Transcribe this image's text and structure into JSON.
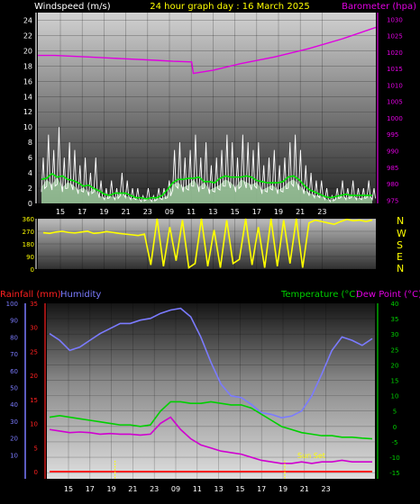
{
  "header": {
    "windspeed_label": "Windspeed (m/s)",
    "title": "24 hour graph day : 16 March 2025",
    "barometer_label": "Barometer (hpa)"
  },
  "colors": {
    "background": "#000000",
    "wind": "#ffffff",
    "wind_avg": "#00e600",
    "wind_gust_fill": "#b8f0b8",
    "barometer": "#e000e0",
    "direction": "#ffff00",
    "humidity": "#7b7bff",
    "rainfall": "#ff2020",
    "temperature": "#00d000",
    "dewpoint": "#d000d0",
    "title": "#ffff00"
  },
  "bottom_labels": {
    "rainfall": "Rainfall (mm)",
    "humidity": "Humidity",
    "temperature": "Temperature (°C)",
    "dewpoint": "Dew Point (°C)",
    "sunset": "Sun Set"
  },
  "compass": [
    "N",
    "W",
    "S",
    "E",
    "N"
  ],
  "chart_data": [
    {
      "type": "line",
      "name": "wind-barometer",
      "x_ticks": [
        "15",
        "17",
        "19",
        "21",
        "23",
        "09",
        "11",
        "13",
        "15",
        "17",
        "19",
        "21",
        "23"
      ],
      "left_axis": {
        "label": "Windspeed (m/s)",
        "ticks": [
          0,
          2,
          4,
          6,
          8,
          10,
          12,
          14,
          16,
          18,
          20,
          22,
          24
        ],
        "ylim": [
          0,
          25
        ]
      },
      "right_axis": {
        "label": "Barometer (hpa)",
        "ticks": [
          975,
          980,
          985,
          990,
          995,
          1000,
          1005,
          1010,
          1015,
          1020,
          1025,
          1030
        ],
        "ylim": [
          974,
          1032
        ]
      },
      "series": [
        {
          "name": "Windspeed (m/s)",
          "axis": "left",
          "color": "#ffffff",
          "values": [
            6,
            9,
            7,
            10,
            6,
            8,
            7,
            5,
            6,
            4,
            6,
            3,
            2,
            3,
            2,
            4,
            3,
            2,
            2,
            1,
            2,
            1,
            2,
            2,
            3,
            7,
            8,
            6,
            7,
            9,
            6,
            8,
            5,
            6,
            7,
            9,
            8,
            6,
            9,
            8,
            7,
            8,
            5,
            6,
            7,
            5,
            6,
            8,
            9,
            7,
            5,
            4,
            3,
            3,
            2,
            1,
            2,
            3,
            2,
            3,
            2,
            2,
            3,
            2
          ]
        },
        {
          "name": "Barometer (hpa)",
          "axis": "right",
          "color": "#e000e0",
          "x": [
            0,
            0.05,
            0.15,
            0.25,
            0.35,
            0.4,
            0.455,
            0.46,
            0.52,
            0.6,
            0.7,
            0.8,
            0.9,
            1.0
          ],
          "values": [
            1019,
            1019,
            1018.5,
            1018,
            1017.5,
            1017.2,
            1017,
            1013.5,
            1014.5,
            1016.5,
            1018.5,
            1021,
            1024,
            1027.5
          ]
        }
      ]
    },
    {
      "type": "line",
      "name": "wind-direction",
      "y_ticks": [
        0,
        90,
        180,
        270,
        360
      ],
      "ylim": [
        0,
        360
      ],
      "series": [
        {
          "name": "Wind direction",
          "color": "#ffff00",
          "values": [
            260,
            255,
            265,
            270,
            262,
            258,
            265,
            270,
            255,
            260,
            268,
            262,
            255,
            250,
            245,
            240,
            250,
            30,
            360,
            20,
            300,
            60,
            350,
            10,
            40,
            360,
            20,
            280,
            10,
            350,
            40,
            70,
            360,
            30,
            300,
            10,
            360,
            20,
            350,
            40,
            360,
            10,
            330,
            350,
            340,
            330,
            320,
            340,
            355,
            345,
            350,
            340,
            350
          ]
        }
      ]
    },
    {
      "type": "line",
      "name": "rain-humidity-temperature",
      "x_ticks": [
        "15",
        "17",
        "19",
        "21",
        "23",
        "09",
        "11",
        "13",
        "15",
        "17",
        "19",
        "21",
        "23"
      ],
      "left_axis_humidity": {
        "ticks": [
          10,
          20,
          30,
          40,
          50,
          60,
          70,
          80,
          90,
          100
        ],
        "ylim": [
          0,
          100
        ]
      },
      "left_axis_rain": {
        "ticks": [
          0,
          5,
          10,
          15,
          20,
          25,
          30,
          35
        ],
        "ylim": [
          0,
          35
        ]
      },
      "right_axis": {
        "ticks": [
          -15,
          -10,
          -5,
          0,
          5,
          10,
          15,
          20,
          25,
          30,
          35,
          40
        ],
        "ylim": [
          -17,
          40
        ]
      },
      "series": [
        {
          "name": "Humidity",
          "axis": "humidity",
          "color": "#7b7bff",
          "values": [
            82,
            78,
            72,
            74,
            78,
            82,
            85,
            88,
            88,
            90,
            91,
            94,
            96,
            97,
            92,
            80,
            65,
            52,
            45,
            44,
            40,
            35,
            34,
            32,
            33,
            36,
            45,
            58,
            72,
            80,
            78,
            75,
            79
          ]
        },
        {
          "name": "Temperature (°C)",
          "axis": "temp",
          "color": "#00d000",
          "values": [
            3,
            3.5,
            3,
            2.5,
            2,
            1.5,
            1,
            0.5,
            0.5,
            0,
            0.5,
            5,
            8,
            8,
            7.5,
            7.5,
            8,
            7.5,
            7,
            7,
            6,
            4,
            2,
            0,
            -1,
            -2,
            -2.5,
            -3,
            -3,
            -3.5,
            -3.5,
            -3.8,
            -4
          ]
        },
        {
          "name": "Dew Point (°C)",
          "axis": "temp",
          "color": "#d000d0",
          "values": [
            -1,
            -1.5,
            -2,
            -1.8,
            -2,
            -2.5,
            -2.3,
            -2.5,
            -2.5,
            -2.8,
            -2.5,
            1,
            3,
            -1,
            -4,
            -6,
            -7,
            -8,
            -8.5,
            -9,
            -10,
            -11,
            -11.5,
            -12,
            -12,
            -11.5,
            -12,
            -11.5,
            -11.5,
            -11,
            -11.5,
            -11.5,
            -11.5
          ]
        },
        {
          "name": "Rainfall (mm)",
          "axis": "rain",
          "color": "#ff2020",
          "values": [
            0,
            0,
            0,
            0,
            0,
            0,
            0,
            0,
            0,
            0,
            0,
            0,
            0,
            0,
            0,
            0,
            0,
            0,
            0,
            0,
            0,
            0,
            0,
            0,
            0,
            0,
            0,
            0,
            0,
            0,
            0,
            0,
            0
          ]
        }
      ]
    }
  ]
}
